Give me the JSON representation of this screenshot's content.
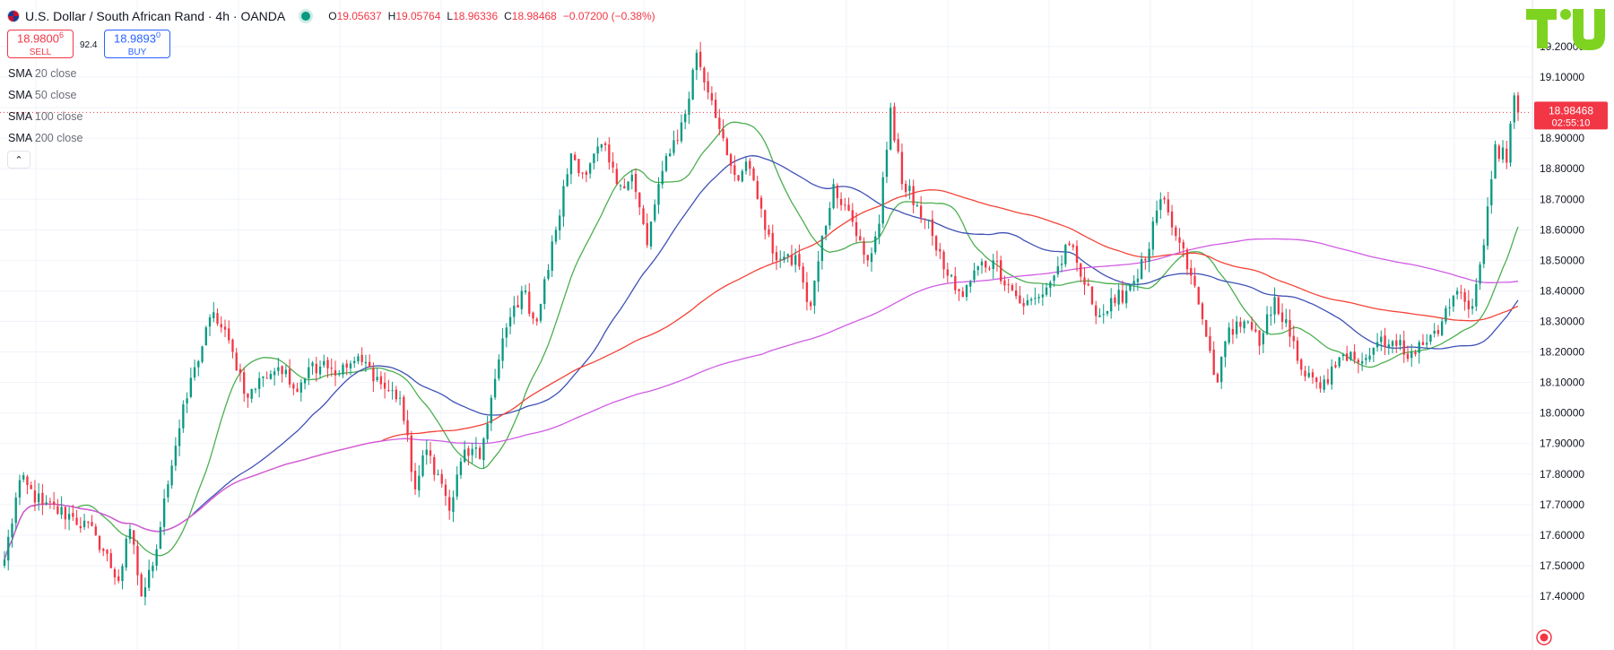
{
  "header": {
    "symbol_title": "U.S. Dollar / South African Rand · 4h · OANDA",
    "ohlc": {
      "o_key": "O",
      "o_val": "19.05637",
      "h_key": "H",
      "h_val": "19.05764",
      "l_key": "L",
      "l_val": "18.96336",
      "c_key": "C",
      "c_val": "18.98468",
      "change": "−0.07200 (−0.38%)"
    }
  },
  "trade": {
    "sell_price": "18.9800",
    "sell_price_sup": "6",
    "sell_label": "SELL",
    "spread": "92.4",
    "buy_price": "18.9893",
    "buy_price_sup": "0",
    "buy_label": "BUY"
  },
  "indicators": [
    {
      "name": "SMA",
      "params": "20 close",
      "color": "#4caf50"
    },
    {
      "name": "SMA",
      "params": "50 close",
      "color": "#3f51b5"
    },
    {
      "name": "SMA",
      "params": "100 close",
      "color": "#f44336"
    },
    {
      "name": "SMA",
      "params": "200 close",
      "color": "#d05ce3"
    }
  ],
  "collapse_icon": "chevron-up-icon",
  "logo": "tradingview-logo",
  "current_price_label": {
    "price": "18.98468",
    "countdown": "02:55:10"
  },
  "colors": {
    "up": "#089981",
    "down": "#f23645",
    "sma20": "#4caf50",
    "sma50": "#3f51b5",
    "sma100": "#f44336",
    "sma200": "#d05ce3"
  },
  "chart_data": {
    "type": "candlestick",
    "title": "U.S. Dollar / South African Rand · 4h · OANDA",
    "ylim": [
      17.35,
      19.25
    ],
    "y_ticks": [
      "19.20000",
      "19.10000",
      "19.00000",
      "18.90000",
      "18.80000",
      "18.70000",
      "18.60000",
      "18.50000",
      "18.40000",
      "18.30000",
      "18.20000",
      "18.10000",
      "18.00000",
      "17.90000",
      "17.80000",
      "17.70000",
      "17.60000",
      "17.50000",
      "17.40000"
    ],
    "grid": true,
    "last_close": 18.98468,
    "price_anchors": [
      [
        0,
        17.52
      ],
      [
        4,
        17.78
      ],
      [
        10,
        17.7
      ],
      [
        18,
        17.66
      ],
      [
        24,
        17.6
      ],
      [
        30,
        17.45
      ],
      [
        33,
        17.62
      ],
      [
        36,
        17.4
      ],
      [
        39,
        17.5
      ],
      [
        42,
        17.72
      ],
      [
        46,
        17.95
      ],
      [
        50,
        18.15
      ],
      [
        55,
        18.33
      ],
      [
        60,
        18.2
      ],
      [
        64,
        18.05
      ],
      [
        68,
        18.12
      ],
      [
        72,
        18.15
      ],
      [
        76,
        18.08
      ],
      [
        80,
        18.15
      ],
      [
        84,
        18.17
      ],
      [
        88,
        18.13
      ],
      [
        92,
        18.17
      ],
      [
        96,
        18.15
      ],
      [
        100,
        18.08
      ],
      [
        104,
        18.05
      ],
      [
        108,
        17.75
      ],
      [
        111,
        17.88
      ],
      [
        114,
        17.8
      ],
      [
        117,
        17.68
      ],
      [
        121,
        17.88
      ],
      [
        125,
        17.85
      ],
      [
        128,
        18.05
      ],
      [
        132,
        18.28
      ],
      [
        136,
        18.4
      ],
      [
        140,
        18.3
      ],
      [
        145,
        18.6
      ],
      [
        149,
        18.85
      ],
      [
        153,
        18.78
      ],
      [
        157,
        18.88
      ],
      [
        161,
        18.75
      ],
      [
        165,
        18.78
      ],
      [
        169,
        18.55
      ],
      [
        172,
        18.75
      ],
      [
        175,
        18.85
      ],
      [
        179,
        18.98
      ],
      [
        182,
        19.18
      ],
      [
        185,
        19.05
      ],
      [
        189,
        18.9
      ],
      [
        192,
        18.78
      ],
      [
        196,
        18.8
      ],
      [
        200,
        18.6
      ],
      [
        203,
        18.5
      ],
      [
        206,
        18.52
      ],
      [
        209,
        18.48
      ],
      [
        212,
        18.35
      ],
      [
        215,
        18.58
      ],
      [
        218,
        18.75
      ],
      [
        221,
        18.68
      ],
      [
        224,
        18.58
      ],
      [
        227,
        18.5
      ],
      [
        230,
        18.62
      ],
      [
        233,
        19.0
      ],
      [
        236,
        18.75
      ],
      [
        240,
        18.68
      ],
      [
        244,
        18.58
      ],
      [
        248,
        18.45
      ],
      [
        252,
        18.38
      ],
      [
        256,
        18.48
      ],
      [
        260,
        18.5
      ],
      [
        264,
        18.42
      ],
      [
        268,
        18.35
      ],
      [
        272,
        18.38
      ],
      [
        276,
        18.45
      ],
      [
        280,
        18.55
      ],
      [
        284,
        18.42
      ],
      [
        288,
        18.32
      ],
      [
        292,
        18.36
      ],
      [
        296,
        18.42
      ],
      [
        300,
        18.5
      ],
      [
        304,
        18.7
      ],
      [
        308,
        18.58
      ],
      [
        312,
        18.45
      ],
      [
        316,
        18.25
      ],
      [
        319,
        18.1
      ],
      [
        322,
        18.28
      ],
      [
        326,
        18.3
      ],
      [
        330,
        18.22
      ],
      [
        334,
        18.38
      ],
      [
        338,
        18.25
      ],
      [
        342,
        18.12
      ],
      [
        346,
        18.08
      ],
      [
        350,
        18.15
      ],
      [
        354,
        18.2
      ],
      [
        358,
        18.18
      ],
      [
        362,
        18.25
      ],
      [
        366,
        18.22
      ],
      [
        370,
        18.2
      ],
      [
        374,
        18.23
      ],
      [
        378,
        18.3
      ],
      [
        382,
        18.4
      ],
      [
        386,
        18.35
      ],
      [
        389,
        18.55
      ],
      [
        392,
        18.88
      ],
      [
        395,
        18.82
      ],
      [
        397,
        19.04
      ],
      [
        398,
        18.98468
      ]
    ]
  }
}
